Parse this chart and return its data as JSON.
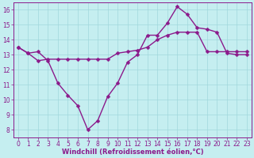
{
  "line1_x": [
    0,
    1,
    2,
    3,
    4,
    5,
    6,
    7,
    8,
    9,
    10,
    11,
    12,
    13,
    14,
    15,
    16,
    17,
    18,
    19,
    20,
    21,
    22,
    23
  ],
  "line1_y": [
    13.5,
    13.1,
    13.2,
    12.6,
    11.1,
    10.3,
    9.6,
    8.0,
    8.6,
    10.2,
    11.1,
    12.5,
    13.0,
    14.3,
    14.3,
    15.1,
    16.2,
    15.7,
    14.8,
    14.7,
    14.5,
    13.1,
    13.0,
    13.0
  ],
  "line2_x": [
    0,
    1,
    2,
    3,
    4,
    5,
    6,
    7,
    8,
    9,
    10,
    11,
    12,
    13,
    14,
    15,
    16,
    17,
    18,
    19,
    20,
    21,
    22,
    23
  ],
  "line2_y": [
    13.5,
    13.1,
    12.6,
    12.7,
    12.7,
    12.7,
    12.7,
    12.7,
    12.7,
    12.7,
    13.1,
    13.2,
    13.3,
    13.5,
    14.0,
    14.3,
    14.5,
    14.5,
    14.5,
    13.2,
    13.2,
    13.2,
    13.2,
    13.2
  ],
  "line_color": "#8B1A8B",
  "bg_color": "#C5EEF0",
  "grid_color": "#A0D8DC",
  "xlabel": "Windchill (Refroidissement éolien,°C)",
  "xlim": [
    -0.5,
    23.5
  ],
  "ylim": [
    7.5,
    16.5
  ],
  "yticks": [
    8,
    9,
    10,
    11,
    12,
    13,
    14,
    15,
    16
  ],
  "xticks": [
    0,
    1,
    2,
    3,
    4,
    5,
    6,
    7,
    8,
    9,
    10,
    11,
    12,
    13,
    14,
    15,
    16,
    17,
    18,
    19,
    20,
    21,
    22,
    23
  ],
  "markersize": 2.5,
  "linewidth": 1.0,
  "tick_fontsize": 5.5,
  "xlabel_fontsize": 6.0
}
